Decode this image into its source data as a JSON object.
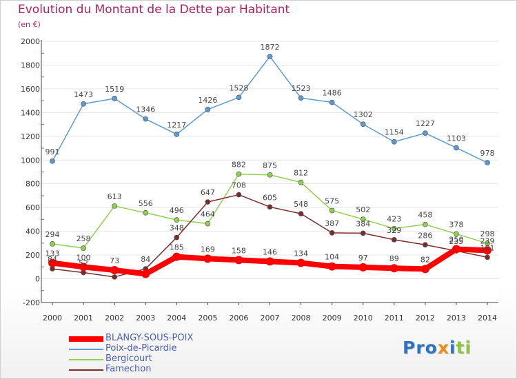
{
  "header": {
    "title": "Evolution du Montant de la Dette par Habitant",
    "subtitle": "(en €)"
  },
  "logo": {
    "parts": [
      {
        "text": "Pro",
        "color": "#2e73c2"
      },
      {
        "text": "x",
        "color": "#f08a1d"
      },
      {
        "text": "i",
        "color": "#2e73c2"
      },
      {
        "text": "ti",
        "color": "#8cc63f"
      }
    ]
  },
  "chart_data": {
    "type": "line",
    "title": "Evolution du Montant de la Dette par Habitant",
    "ylabel": "(en €)",
    "xlabel": "",
    "x": [
      "2000",
      "2001",
      "2002",
      "2003",
      "2004",
      "2005",
      "2006",
      "2007",
      "2008",
      "2009",
      "2010",
      "2011",
      "2012",
      "2013",
      "2014"
    ],
    "ylim": [
      -200,
      2000
    ],
    "yticks": [
      -200,
      0,
      200,
      400,
      600,
      800,
      1000,
      1200,
      1400,
      1600,
      1800,
      2000
    ],
    "grid": "horizontal",
    "legend_position": "bottom-left",
    "series": [
      {
        "name": "BLANGY-SOUS-POIX",
        "color": "#ff0000",
        "emphasis": true,
        "values": [
          133,
          100,
          73,
          41,
          185,
          169,
          158,
          146,
          134,
          104,
          97,
          89,
          82,
          250,
          239
        ],
        "labels": [
          "133",
          "100",
          "73",
          "",
          "185",
          "169",
          "158",
          "146",
          "134",
          "104",
          "97",
          "89",
          "82",
          "250",
          "239"
        ]
      },
      {
        "name": "Poix-de-Picardie",
        "color": "#5b9bd5",
        "emphasis": false,
        "values": [
          991,
          1473,
          1519,
          1346,
          1217,
          1426,
          1528,
          1872,
          1523,
          1486,
          1302,
          1154,
          1227,
          1103,
          978
        ],
        "labels": [
          "991",
          "1473",
          "1519",
          "1346",
          "1217",
          "1426",
          "1528",
          "1872",
          "1523",
          "1486",
          "1302",
          "1154",
          "1227",
          "1103",
          "978"
        ]
      },
      {
        "name": "Bergicourt",
        "color": "#8fd14f",
        "emphasis": false,
        "values": [
          294,
          258,
          613,
          556,
          496,
          464,
          882,
          875,
          812,
          575,
          502,
          423,
          458,
          378,
          298
        ],
        "labels": [
          "294",
          "258",
          "613",
          "556",
          "496",
          "464",
          "882",
          "875",
          "812",
          "575",
          "502",
          "423",
          "458",
          "378",
          "298"
        ]
      },
      {
        "name": "Famechon",
        "color": "#7a2c2c",
        "emphasis": false,
        "values": [
          84,
          52,
          15,
          84,
          348,
          647,
          708,
          605,
          548,
          387,
          384,
          329,
          286,
          235,
          181
        ],
        "labels": [
          "84",
          "52",
          "",
          "84",
          "348",
          "647",
          "708",
          "605",
          "548",
          "387",
          "384",
          "329",
          "286",
          "235",
          "181"
        ]
      }
    ]
  }
}
